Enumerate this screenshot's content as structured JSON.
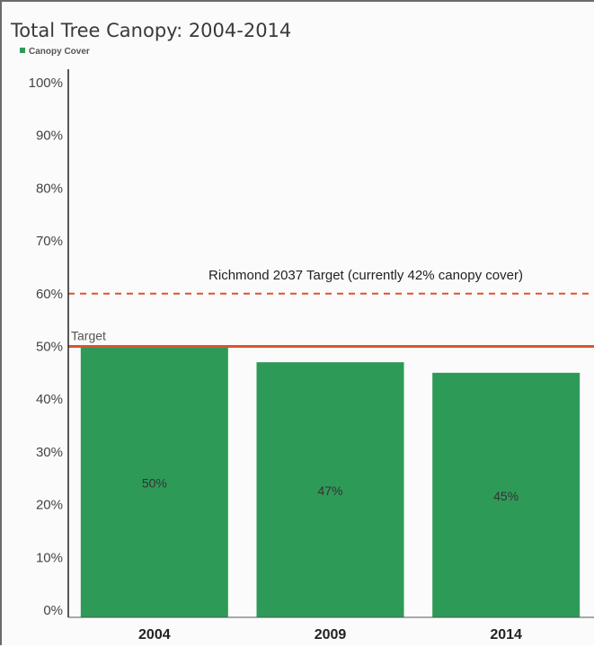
{
  "chart_data": {
    "type": "bar",
    "title": "Total Tree Canopy: 2004-2014",
    "legend": [
      {
        "label": "Canopy Cover",
        "color": "#2e9a57"
      }
    ],
    "legend_placement": "top-left",
    "categories": [
      "2004",
      "2009",
      "2014"
    ],
    "series": [
      {
        "name": "Canopy Cover",
        "values": [
          50,
          47,
          45
        ]
      }
    ],
    "data_labels": [
      "50%",
      "47%",
      "45%"
    ],
    "ylim": [
      0,
      100
    ],
    "y_ticks": [
      "0%",
      "10%",
      "20%",
      "30%",
      "40%",
      "50%",
      "60%",
      "70%",
      "80%",
      "90%",
      "100%"
    ],
    "grid": false,
    "reference_lines": [
      {
        "label": "Target",
        "value": 50,
        "style": "solid",
        "color": "#e0522f"
      },
      {
        "label": "Richmond 2037 Target (currently 42% canopy cover)",
        "value": 60,
        "style": "dashed",
        "color": "#e0522f"
      }
    ],
    "bar_color": "#2e9a57"
  }
}
